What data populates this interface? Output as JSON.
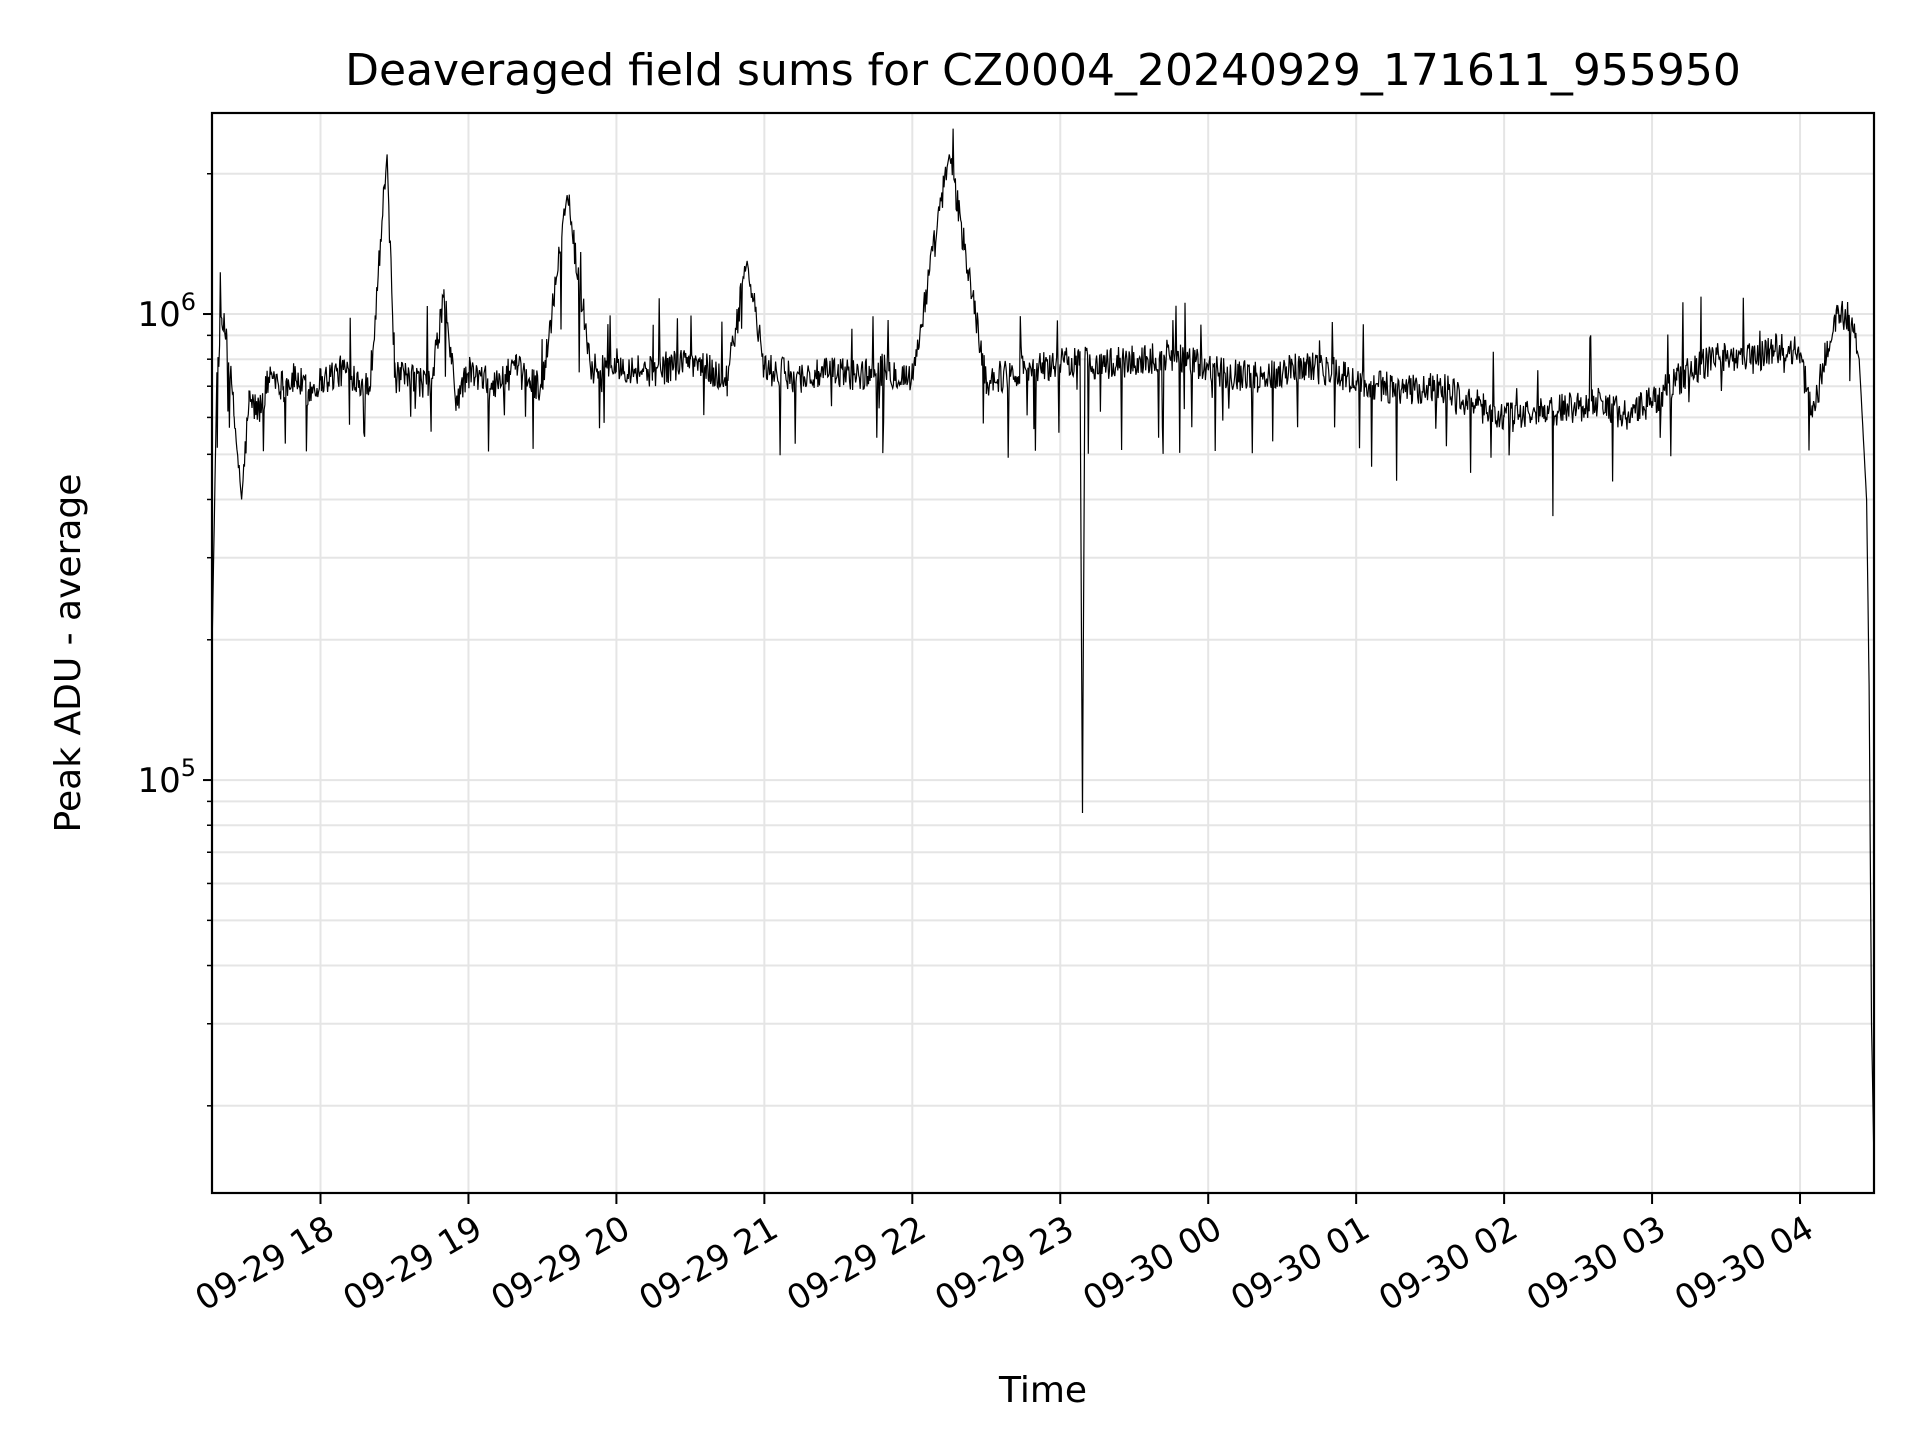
{
  "chart_data": {
    "type": "line",
    "title": "Deaveraged field sums for CZ0004_20240929_171611_955950",
    "xlabel": "Time",
    "ylabel": "Peak ADU - average",
    "yscale": "log",
    "grid": true,
    "line_color": "#000000",
    "grid_color": "#e5e5e5",
    "xlim": [
      "2024-09-29 17:16",
      "2024-09-30 04:30"
    ],
    "ylim": [
      13000,
      2700000
    ],
    "x_ticks": [
      {
        "value": "2024-09-29 18:00",
        "label": "09-29 18"
      },
      {
        "value": "2024-09-29 19:00",
        "label": "09-29 19"
      },
      {
        "value": "2024-09-29 20:00",
        "label": "09-29 20"
      },
      {
        "value": "2024-09-29 21:00",
        "label": "09-29 21"
      },
      {
        "value": "2024-09-29 22:00",
        "label": "09-29 22"
      },
      {
        "value": "2024-09-29 23:00",
        "label": "09-29 23"
      },
      {
        "value": "2024-09-30 00:00",
        "label": "09-30 00"
      },
      {
        "value": "2024-09-30 01:00",
        "label": "09-30 01"
      },
      {
        "value": "2024-09-30 02:00",
        "label": "09-30 02"
      },
      {
        "value": "2024-09-30 03:00",
        "label": "09-30 03"
      },
      {
        "value": "2024-09-30 04:00",
        "label": "09-30 04"
      }
    ],
    "y_ticks": [
      {
        "value": 100000,
        "base": "10",
        "exponent": "5"
      },
      {
        "value": 1000000,
        "base": "10",
        "exponent": "6"
      }
    ],
    "series": [
      {
        "x": [
          "2024-09-29 17:16",
          "2024-09-29 17:18",
          "2024-09-29 17:20",
          "2024-09-29 17:22",
          "2024-09-29 17:25",
          "2024-09-29 17:28",
          "2024-09-29 17:31",
          "2024-09-29 17:35",
          "2024-09-29 17:40",
          "2024-09-29 17:45",
          "2024-09-29 17:50",
          "2024-09-29 17:55",
          "2024-09-29 18:00",
          "2024-09-29 18:10",
          "2024-09-29 18:20",
          "2024-09-29 18:27",
          "2024-09-29 18:30",
          "2024-09-29 18:40",
          "2024-09-29 18:45",
          "2024-09-29 18:50",
          "2024-09-29 18:55",
          "2024-09-29 19:00",
          "2024-09-29 19:10",
          "2024-09-29 19:19",
          "2024-09-29 19:25",
          "2024-09-29 19:30",
          "2024-09-29 19:40",
          "2024-09-29 19:50",
          "2024-09-29 20:00",
          "2024-09-29 20:15",
          "2024-09-29 20:30",
          "2024-09-29 20:45",
          "2024-09-29 20:53",
          "2024-09-29 21:00",
          "2024-09-29 21:15",
          "2024-09-29 21:30",
          "2024-09-29 21:40",
          "2024-09-29 21:48",
          "2024-09-29 22:00",
          "2024-09-29 22:15",
          "2024-09-29 22:30",
          "2024-09-29 22:45",
          "2024-09-29 23:00",
          "2024-09-29 23:08",
          "2024-09-29 23:09",
          "2024-09-29 23:10",
          "2024-09-29 23:15",
          "2024-09-29 23:30",
          "2024-09-29 23:45",
          "2024-09-30 00:00",
          "2024-09-30 00:20",
          "2024-09-30 00:40",
          "2024-09-30 01:00",
          "2024-09-30 01:20",
          "2024-09-30 01:35",
          "2024-09-30 01:45",
          "2024-09-30 02:00",
          "2024-09-30 02:20",
          "2024-09-30 02:40",
          "2024-09-30 02:50",
          "2024-09-30 03:00",
          "2024-09-30 03:10",
          "2024-09-30 03:20",
          "2024-09-30 03:30",
          "2024-09-30 03:40",
          "2024-09-30 03:50",
          "2024-09-30 04:00",
          "2024-09-30 04:05",
          "2024-09-30 04:10",
          "2024-09-30 04:15",
          "2024-09-30 04:20",
          "2024-09-30 04:24",
          "2024-09-30 04:27",
          "2024-09-30 04:28",
          "2024-09-30 04:29",
          "2024-09-30 04:30"
        ],
        "y": [
          190000,
          750000,
          950000,
          900000,
          600000,
          400000,
          650000,
          620000,
          750000,
          700000,
          730000,
          680000,
          720000,
          760000,
          700000,
          2200000,
          730000,
          720000,
          700000,
          1100000,
          650000,
          750000,
          700000,
          760000,
          720000,
          700000,
          1800000,
          760000,
          780000,
          750000,
          800000,
          720000,
          1300000,
          760000,
          730000,
          750000,
          740000,
          760000,
          730000,
          2200000,
          720000,
          760000,
          780000,
          800000,
          85000,
          800000,
          780000,
          790000,
          820000,
          760000,
          730000,
          780000,
          720000,
          680000,
          700000,
          650000,
          600000,
          620000,
          650000,
          600000,
          650000,
          720000,
          780000,
          820000,
          800000,
          850000,
          820000,
          600000,
          800000,
          1000000,
          980000,
          800000,
          400000,
          160000,
          30000,
          15000
        ]
      }
    ]
  }
}
